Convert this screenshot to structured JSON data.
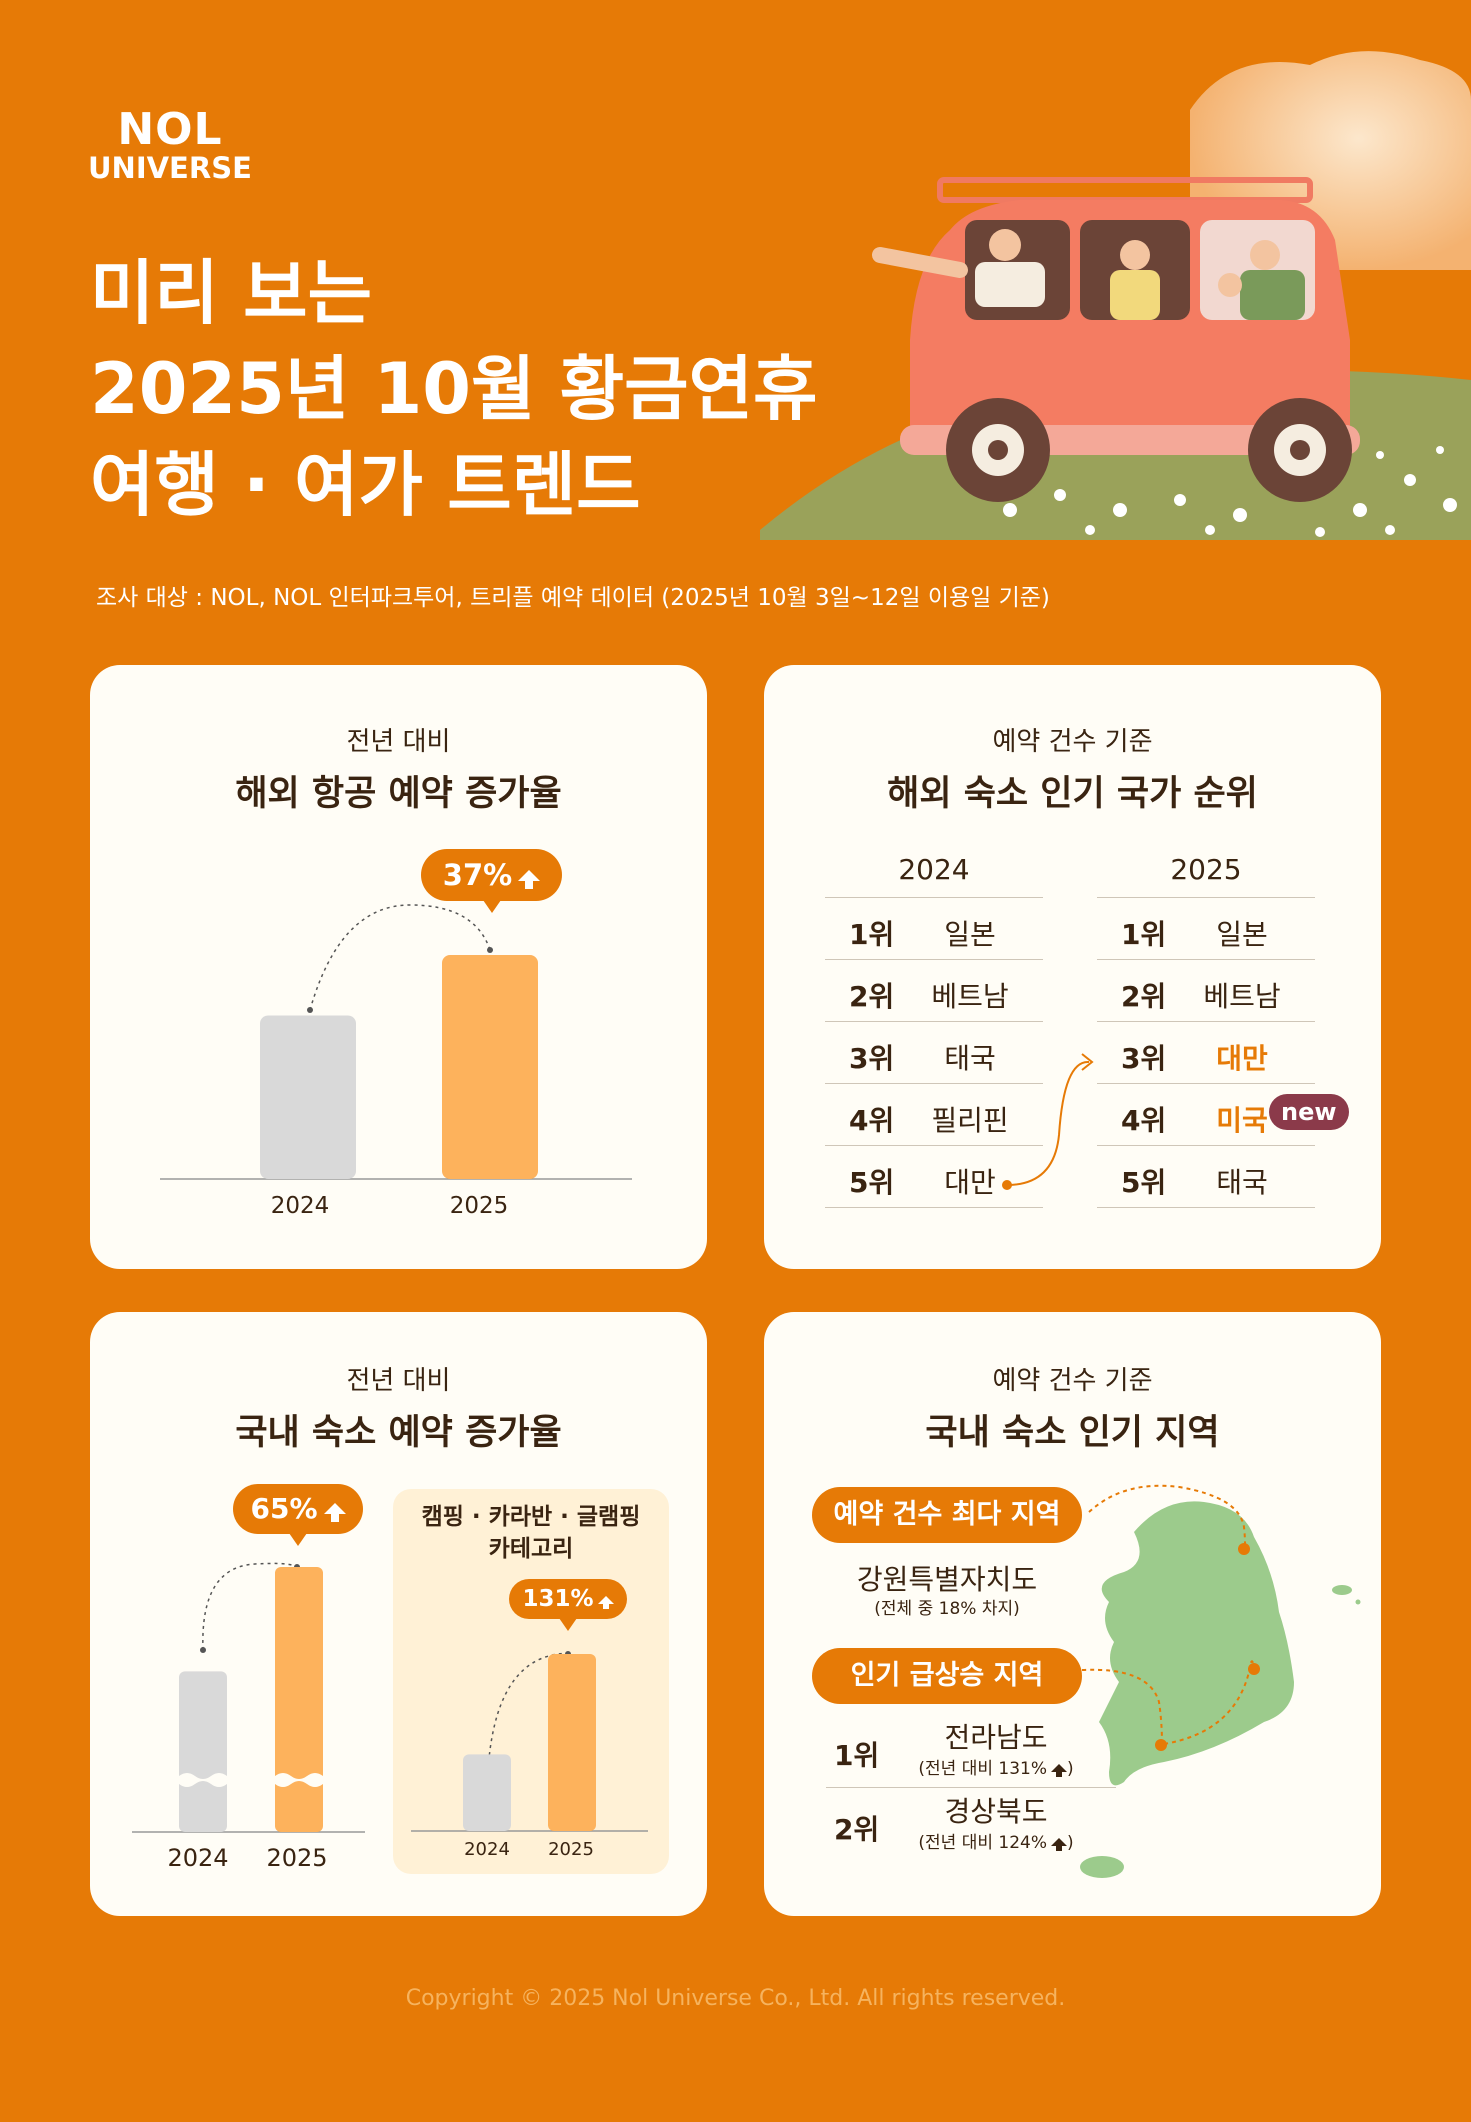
{
  "brand": {
    "line1": "NOL",
    "line2": "UNIVERSE"
  },
  "title": {
    "line1": "미리 보는",
    "line2": "2025년 10월 황금연휴",
    "line3": "여행 · 여가 트렌드"
  },
  "survey": "조사 대상 : NOL, NOL 인터파크투어, 트리플 예약 데이터 (2025년 10월 3일~12일 이용일 기준)",
  "cards": {
    "flight": {
      "subtitle": "전년 대비",
      "title": "해외 항공 예약 증가율",
      "badge": "37%"
    },
    "overseas_rank": {
      "subtitle": "예약 건수 기준",
      "title": "해외 숙소 인기 국가 순위",
      "new_label": "new",
      "columns": [
        {
          "year": "2024",
          "rows": [
            {
              "rank": "1위",
              "country": "일본"
            },
            {
              "rank": "2위",
              "country": "베트남"
            },
            {
              "rank": "3위",
              "country": "태국"
            },
            {
              "rank": "4위",
              "country": "필리핀"
            },
            {
              "rank": "5위",
              "country": "대만"
            }
          ]
        },
        {
          "year": "2025",
          "rows": [
            {
              "rank": "1위",
              "country": "일본"
            },
            {
              "rank": "2위",
              "country": "베트남"
            },
            {
              "rank": "3위",
              "country": "대만"
            },
            {
              "rank": "4위",
              "country": "미국"
            },
            {
              "rank": "5위",
              "country": "태국"
            }
          ]
        }
      ]
    },
    "domestic": {
      "subtitle": "전년 대비",
      "title": "국내 숙소 예약 증가율",
      "badge": "65%",
      "glamping_title_1": "캠핑 · 카라반 · 글램핑",
      "glamping_title_2": "카테고리",
      "glamping_badge": "131%"
    },
    "region": {
      "subtitle": "예약 건수 기준",
      "title": "국내 숙소 인기 지역",
      "top_label": "예약 건수 최다 지역",
      "top_region": "강원특별자치도",
      "top_note": "(전체 중 18% 차지)",
      "rise_label": "인기 급상승 지역",
      "rise": [
        {
          "rank": "1위",
          "name": "전라남도",
          "note": "(전년 대비 131%"
        },
        {
          "rank": "2위",
          "name": "경상북도",
          "note": "(전년 대비 124%"
        }
      ],
      "note_close": ")"
    }
  },
  "chart_data": [
    {
      "type": "bar",
      "categories": [
        "2024",
        "2025"
      ],
      "values": [
        100,
        137
      ],
      "annotation": "37%"
    },
    {
      "type": "bar",
      "categories": [
        "2024",
        "2025"
      ],
      "values": [
        100,
        165
      ],
      "annotation": "65%"
    },
    {
      "type": "bar",
      "title": "캠핑 · 카라반 · 글램핑 카테고리",
      "categories": [
        "2024",
        "2025"
      ],
      "values": [
        100,
        231
      ],
      "annotation": "131%"
    }
  ],
  "colors": {
    "background": "#E67A06",
    "bar_prev": "#D9D9D9",
    "bar_curr": "#FDB25C",
    "card": "#FFFDF6",
    "new_badge": "#8B3A4A",
    "map": "#9CCB8C"
  },
  "footer": "Copyright © 2025 Nol Universe Co., Ltd. All rights reserved."
}
